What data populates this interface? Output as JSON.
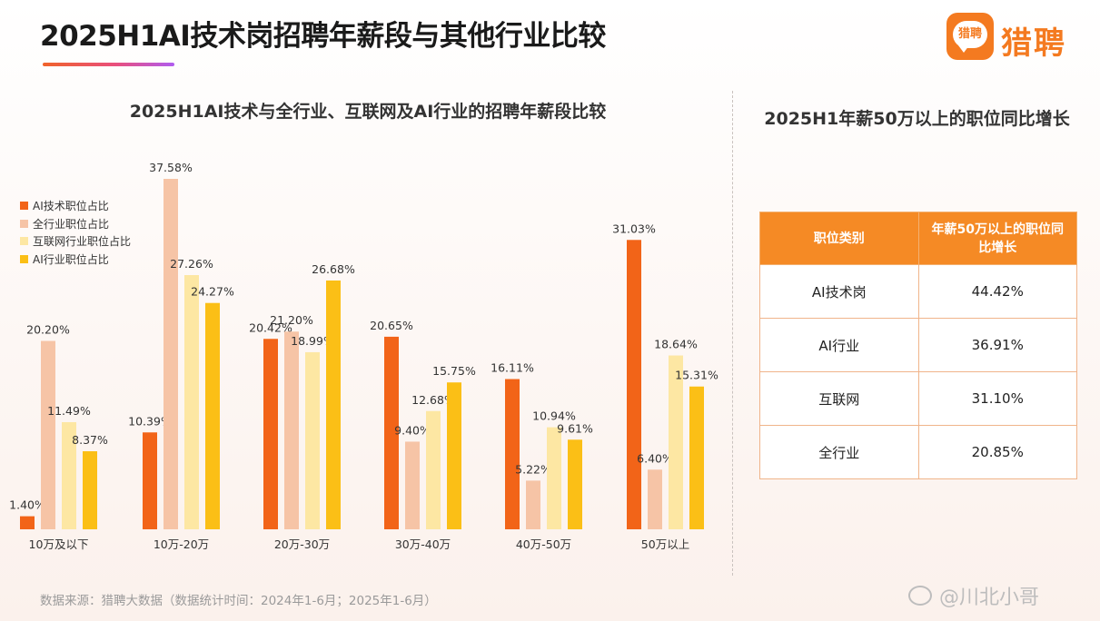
{
  "title": "2025H1AI技术岗招聘年薪段与其他行业比较",
  "logo": {
    "badge_text": "猎聘",
    "text": "猎聘"
  },
  "chart_data": {
    "type": "bar",
    "title": "2025H1AI技术与全行业、互联网及AI行业的招聘年薪段比较",
    "categories": [
      "10万及以下",
      "10万-20万",
      "20万-30万",
      "30万-40万",
      "40万-50万",
      "50万以上"
    ],
    "series": [
      {
        "name": "AI技术职位占比",
        "color": "#f26418",
        "values": [
          1.4,
          10.39,
          20.42,
          20.65,
          16.11,
          31.03
        ]
      },
      {
        "name": "全行业职位占比",
        "color": "#f6c4a6",
        "values": [
          20.2,
          37.58,
          21.2,
          9.4,
          5.22,
          6.4
        ]
      },
      {
        "name": "互联网行业职位占比",
        "color": "#fde7a3",
        "values": [
          11.49,
          27.26,
          18.99,
          12.68,
          10.94,
          18.64
        ]
      },
      {
        "name": "AI行业职位占比",
        "color": "#fbbf16",
        "values": [
          8.37,
          24.27,
          26.68,
          15.75,
          9.61,
          15.31
        ]
      }
    ],
    "value_format": "percent_2dp",
    "ylim": [
      0,
      40
    ],
    "grid": false,
    "legend_position": "top-left",
    "xlabel": "",
    "ylabel": ""
  },
  "table": {
    "title": "2025H1年薪50万以上的职位同比增长",
    "header": [
      "职位类别",
      "年薪50万以上的职位同比增长"
    ],
    "rows": [
      [
        "AI技术岗",
        "44.42%"
      ],
      [
        "AI行业",
        "36.91%"
      ],
      [
        "互联网",
        "31.10%"
      ],
      [
        "全行业",
        "20.85%"
      ]
    ]
  },
  "source": "数据来源：猎聘大数据（数据统计时间：2024年1-6月；2025年1-6月）",
  "watermark": "@川北小哥"
}
